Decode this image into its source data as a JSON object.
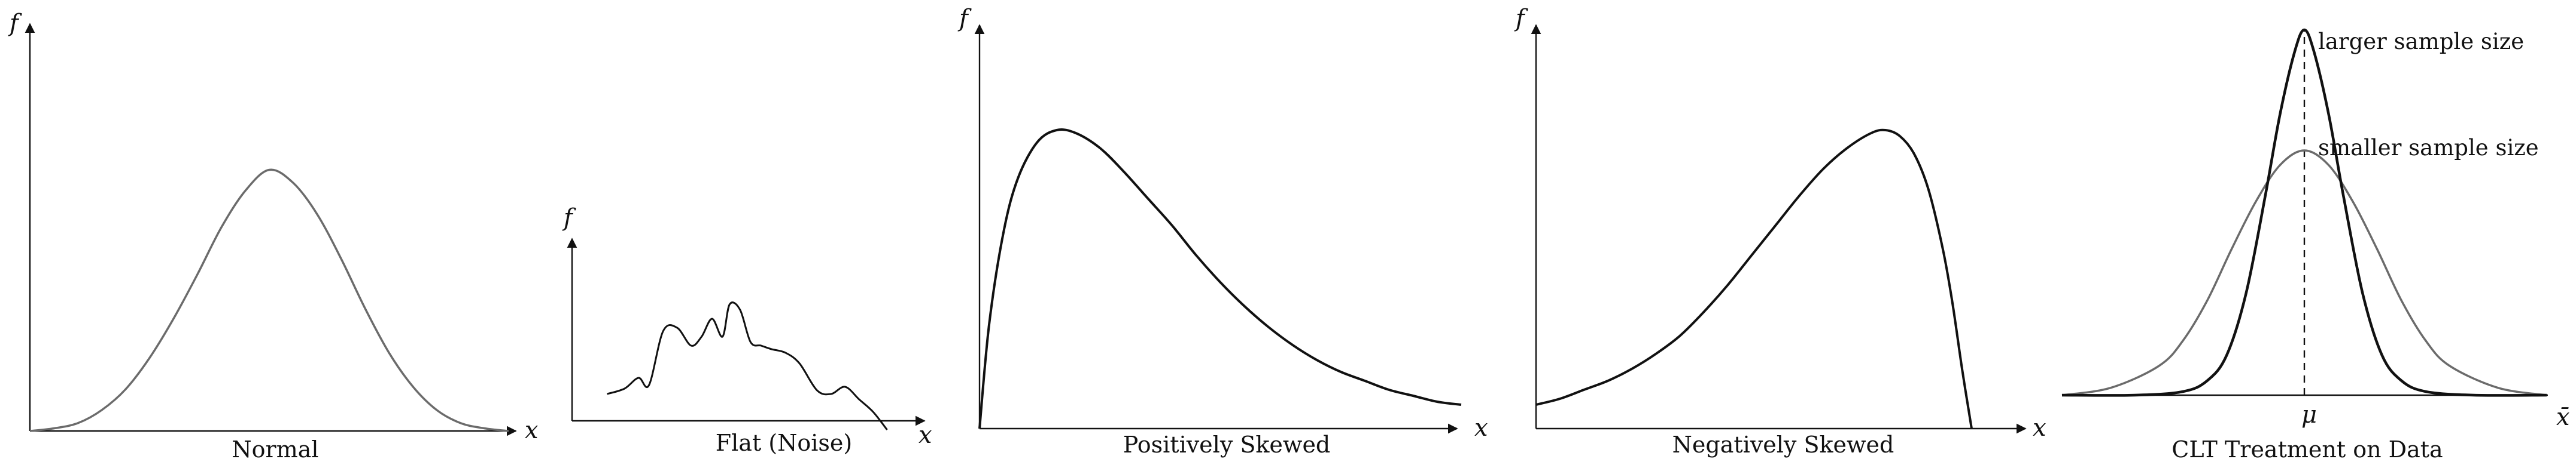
{
  "chart_data": [
    {
      "type": "line",
      "caption": "Normal",
      "xlabel": "x",
      "ylabel": "f",
      "curve_color": "#6b6b6b",
      "x": [
        0,
        0.05,
        0.1,
        0.15,
        0.2,
        0.25,
        0.3,
        0.35,
        0.4,
        0.45,
        0.5,
        0.55,
        0.6,
        0.65,
        0.7,
        0.75,
        0.8,
        0.85,
        0.9,
        0.95,
        1
      ],
      "y": [
        0.0,
        0.01,
        0.03,
        0.08,
        0.16,
        0.28,
        0.43,
        0.6,
        0.78,
        0.92,
        1.0,
        0.95,
        0.83,
        0.66,
        0.47,
        0.3,
        0.17,
        0.08,
        0.03,
        0.01,
        0.0
      ],
      "xlim": [
        0,
        1
      ],
      "ylim": [
        0,
        1.6
      ]
    },
    {
      "type": "line",
      "caption": "Flat (Noise)",
      "xlabel": "x",
      "ylabel": "f",
      "curve_color": "#111111",
      "x": [
        0.1,
        0.15,
        0.19,
        0.22,
        0.26,
        0.3,
        0.34,
        0.37,
        0.4,
        0.43,
        0.45,
        0.48,
        0.51,
        0.54,
        0.57,
        0.61,
        0.65,
        0.7,
        0.74,
        0.78,
        0.82,
        0.86,
        0.9
      ],
      "y": [
        0.15,
        0.18,
        0.24,
        0.2,
        0.5,
        0.52,
        0.42,
        0.47,
        0.57,
        0.47,
        0.65,
        0.62,
        0.44,
        0.42,
        0.4,
        0.38,
        0.32,
        0.17,
        0.15,
        0.19,
        0.12,
        0.05,
        -0.05
      ],
      "xlim": [
        0,
        1
      ],
      "ylim": [
        0,
        1
      ]
    },
    {
      "type": "line",
      "caption": "Positively Skewed",
      "xlabel": "x",
      "ylabel": "f",
      "curve_color": "#111111",
      "x": [
        0,
        0.02,
        0.05,
        0.08,
        0.12,
        0.16,
        0.2,
        0.25,
        0.3,
        0.35,
        0.4,
        0.45,
        0.5,
        0.55,
        0.6,
        0.65,
        0.7,
        0.75,
        0.8,
        0.85,
        0.9,
        0.95,
        1
      ],
      "y": [
        0.0,
        0.35,
        0.66,
        0.84,
        0.96,
        1.0,
        0.99,
        0.94,
        0.86,
        0.77,
        0.68,
        0.58,
        0.49,
        0.41,
        0.34,
        0.28,
        0.23,
        0.19,
        0.16,
        0.13,
        0.11,
        0.09,
        0.08
      ],
      "xlim": [
        0,
        1
      ],
      "ylim": [
        0,
        1.35
      ]
    },
    {
      "type": "line",
      "caption": "Negatively Skewed",
      "xlabel": "x",
      "ylabel": "f",
      "curve_color": "#111111",
      "x": [
        0,
        0.05,
        0.1,
        0.15,
        0.2,
        0.25,
        0.3,
        0.35,
        0.4,
        0.45,
        0.5,
        0.55,
        0.6,
        0.65,
        0.7,
        0.73,
        0.76,
        0.79,
        0.82,
        0.85,
        0.87,
        0.89,
        0.91
      ],
      "y": [
        0.08,
        0.1,
        0.13,
        0.16,
        0.2,
        0.25,
        0.31,
        0.39,
        0.48,
        0.58,
        0.68,
        0.78,
        0.87,
        0.94,
        0.99,
        1.0,
        0.98,
        0.92,
        0.8,
        0.6,
        0.42,
        0.2,
        0.0
      ],
      "xlim": [
        0,
        1
      ],
      "ylim": [
        0,
        1.35
      ]
    },
    {
      "type": "line",
      "caption": "CLT Treatment on Data",
      "xlabel": "x̄",
      "mean_label": "μ",
      "series": [
        {
          "name": "larger sample size",
          "color": "#111111",
          "x": [
            0,
            0.15,
            0.25,
            0.3,
            0.34,
            0.38,
            0.42,
            0.45,
            0.48,
            0.5,
            0.52,
            0.55,
            0.58,
            0.62,
            0.66,
            0.7,
            0.75,
            0.85,
            1
          ],
          "y": [
            0,
            0.0,
            0.01,
            0.04,
            0.11,
            0.28,
            0.55,
            0.77,
            0.94,
            1.0,
            0.94,
            0.77,
            0.55,
            0.28,
            0.11,
            0.04,
            0.01,
            0.0,
            0
          ]
        },
        {
          "name": "smaller sample size",
          "color": "#6b6b6b",
          "x": [
            0,
            0.1,
            0.2,
            0.25,
            0.3,
            0.35,
            0.4,
            0.45,
            0.5,
            0.55,
            0.6,
            0.65,
            0.7,
            0.75,
            0.8,
            0.9,
            1
          ],
          "y": [
            0.0,
            0.02,
            0.08,
            0.15,
            0.26,
            0.4,
            0.53,
            0.63,
            0.67,
            0.63,
            0.53,
            0.4,
            0.26,
            0.15,
            0.08,
            0.02,
            0.0
          ]
        }
      ],
      "xlim": [
        0,
        1
      ],
      "ylim": [
        0,
        1
      ]
    }
  ]
}
